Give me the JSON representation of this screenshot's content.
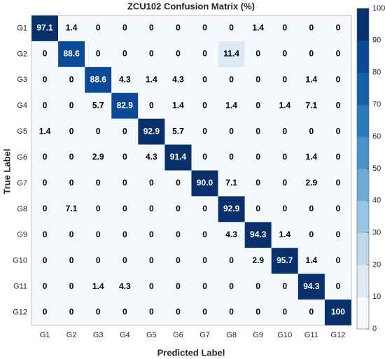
{
  "chart_data": {
    "type": "heatmap",
    "title": "ZCU102 Confusion Matrix (%)",
    "x_label": "Predicted Label",
    "y_label": "True Label",
    "categories": [
      "G1",
      "G2",
      "G3",
      "G4",
      "G5",
      "G6",
      "G7",
      "G8",
      "G9",
      "G10",
      "G11",
      "G12"
    ],
    "values": [
      [
        97.1,
        1.4,
        0,
        0,
        0,
        0,
        0,
        0,
        1.4,
        0,
        0,
        0
      ],
      [
        0,
        88.6,
        0,
        0,
        0,
        0,
        0,
        11.4,
        0,
        0,
        0,
        0
      ],
      [
        0,
        0,
        88.6,
        4.3,
        1.4,
        4.3,
        0,
        0,
        0,
        0,
        1.4,
        0
      ],
      [
        0,
        0,
        5.7,
        82.9,
        0,
        1.4,
        0,
        1.4,
        0,
        1.4,
        7.1,
        0
      ],
      [
        1.4,
        0,
        0,
        0,
        92.9,
        5.7,
        0,
        0,
        0,
        0,
        0,
        0
      ],
      [
        0,
        0,
        2.9,
        0,
        4.3,
        91.4,
        0,
        0,
        0,
        0,
        1.4,
        0
      ],
      [
        0,
        0,
        0,
        0,
        0,
        0,
        90,
        7.1,
        0,
        0,
        2.9,
        0
      ],
      [
        0,
        7.1,
        0,
        0,
        0,
        0,
        0,
        92.9,
        0,
        0,
        0,
        0
      ],
      [
        0,
        0,
        0,
        0,
        0,
        0,
        0,
        4.3,
        94.3,
        1.4,
        0,
        0
      ],
      [
        0,
        0,
        0,
        0,
        0,
        0,
        0,
        0,
        2.9,
        95.7,
        1.4,
        0
      ],
      [
        0,
        0,
        1.4,
        4.3,
        0,
        0,
        0,
        0,
        0,
        0,
        94.3,
        0
      ],
      [
        0,
        0,
        0,
        0,
        0,
        0,
        0,
        0,
        0,
        0,
        0,
        100
      ]
    ],
    "value_labels": [
      [
        "97.1",
        "1.4",
        "0",
        "0",
        "0",
        "0",
        "0",
        "0",
        "1.4",
        "0",
        "0",
        "0"
      ],
      [
        "0",
        "88.6",
        "0",
        "0",
        "0",
        "0",
        "0",
        "11.4",
        "0",
        "0",
        "0",
        "0"
      ],
      [
        "0",
        "0",
        "88.6",
        "4.3",
        "1.4",
        "4.3",
        "0",
        "0",
        "0",
        "0",
        "1.4",
        "0"
      ],
      [
        "0",
        "0",
        "5.7",
        "82.9",
        "0",
        "1.4",
        "0",
        "1.4",
        "0",
        "1.4",
        "7.1",
        "0"
      ],
      [
        "1.4",
        "0",
        "0",
        "0",
        "92.9",
        "5.7",
        "0",
        "0",
        "0",
        "0",
        "0",
        "0"
      ],
      [
        "0",
        "0",
        "2.9",
        "0",
        "4.3",
        "91.4",
        "0",
        "0",
        "0",
        "0",
        "1.4",
        "0"
      ],
      [
        "0",
        "0",
        "0",
        "0",
        "0",
        "0",
        "90.0",
        "7.1",
        "0",
        "0",
        "2.9",
        "0"
      ],
      [
        "0",
        "7.1",
        "0",
        "0",
        "0",
        "0",
        "0",
        "92.9",
        "0",
        "0",
        "0",
        "0"
      ],
      [
        "0",
        "0",
        "0",
        "0",
        "0",
        "0",
        "0",
        "4.3",
        "94.3",
        "1.4",
        "0",
        "0"
      ],
      [
        "0",
        "0",
        "0",
        "0",
        "0",
        "0",
        "0",
        "0",
        "2.9",
        "95.7",
        "1.4",
        "0"
      ],
      [
        "0",
        "0",
        "1.4",
        "4.3",
        "0",
        "0",
        "0",
        "0",
        "0",
        "0",
        "94.3",
        "0"
      ],
      [
        "0",
        "0",
        "0",
        "0",
        "0",
        "0",
        "0",
        "0",
        "0",
        "0",
        "0",
        "100"
      ]
    ],
    "clim": [
      0,
      100
    ],
    "cticks": [
      0,
      10,
      20,
      30,
      40,
      50,
      60,
      70,
      80,
      90,
      100
    ],
    "colors": [
      "#f5f9fe",
      "#dde9f5",
      "#bdd8ec",
      "#97c4e1",
      "#6eabd6",
      "#4a91c8",
      "#2a79bb",
      "#1561a9",
      "#0a4a97",
      "#08306b"
    ]
  }
}
